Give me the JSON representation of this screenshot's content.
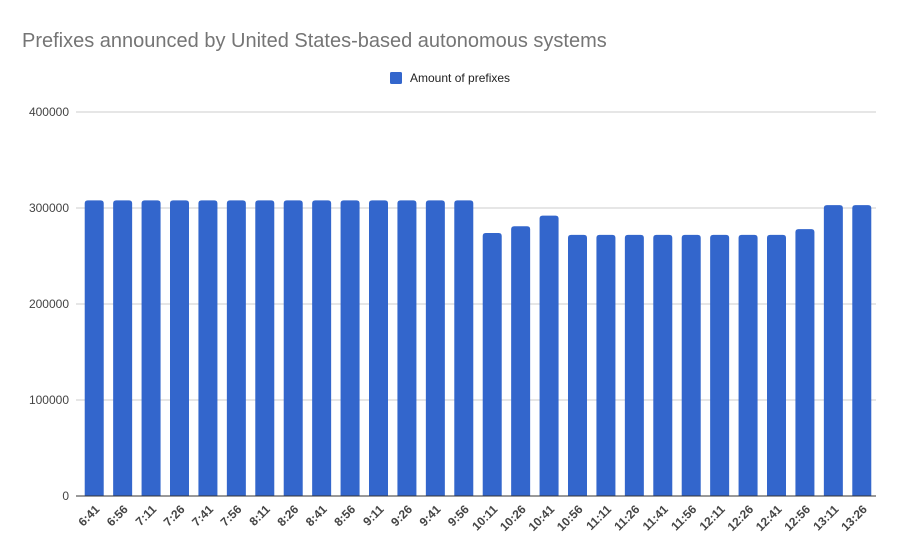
{
  "chart_data": {
    "type": "bar",
    "title": "Prefixes announced by United States-based autonomous systems",
    "xlabel": "",
    "ylabel": "",
    "categories": [
      "6:41",
      "6:56",
      "7:11",
      "7:26",
      "7:41",
      "7:56",
      "8:11",
      "8:26",
      "8:41",
      "8:56",
      "9:11",
      "9:26",
      "9:41",
      "9:56",
      "10:11",
      "10:26",
      "10:41",
      "10:56",
      "11:11",
      "11:26",
      "11:41",
      "11:56",
      "12:11",
      "12:26",
      "12:41",
      "12:56",
      "13:11",
      "13:26"
    ],
    "series": [
      {
        "name": "Amount of prefixes",
        "values": [
          308000,
          308000,
          308000,
          308000,
          308000,
          308000,
          308000,
          308000,
          308000,
          308000,
          308000,
          308000,
          308000,
          308000,
          274000,
          281000,
          292000,
          272000,
          272000,
          272000,
          272000,
          272000,
          272000,
          272000,
          272000,
          278000,
          303000,
          303000
        ]
      }
    ],
    "ylim": [
      0,
      400000
    ],
    "yticks": [
      "0",
      "100000",
      "200000",
      "300000",
      "400000"
    ],
    "ytick_values": [
      0,
      100000,
      200000,
      300000,
      400000
    ],
    "grid": true,
    "legend_position": "top-center",
    "colors": {
      "bar": "#3366cc",
      "title": "#757575",
      "grid": "#cccccc",
      "axis": "#333333",
      "tick_text": "#444444"
    }
  }
}
